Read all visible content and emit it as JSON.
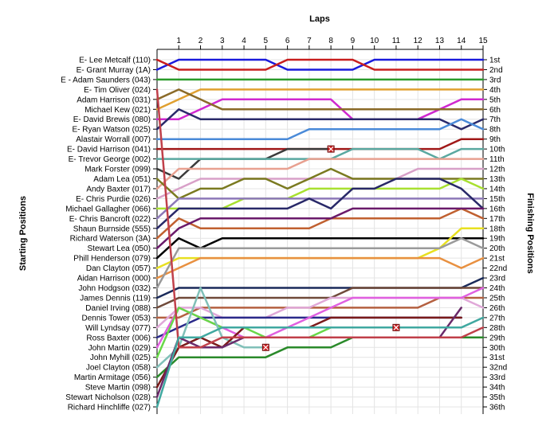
{
  "chart_data": {
    "type": "line",
    "title": "",
    "xlabel": "Laps",
    "ylabel_left": "Starting Positions",
    "ylabel_right": "Finishing Positions",
    "x_ticks": [
      1,
      2,
      3,
      4,
      5,
      6,
      7,
      8,
      9,
      10,
      11,
      12,
      13,
      14,
      15
    ],
    "xlim": [
      0,
      15
    ],
    "ylim": [
      1,
      36
    ],
    "y_inverted": true,
    "grid": true,
    "starting_positions": [
      "E- Lee Metcalf (110)",
      "E- Grant Murray (1A)",
      "E - Adam Saunders (043)",
      "E- Tim Oliver (024)",
      "Adam Harrison (031)",
      "Michael Kew (021)",
      "E- David Brewis (080)",
      "E- Ryan Watson (025)",
      "Alastair Worrall (007)",
      "E- David Harrison (041)",
      "E- Trevor George (002)",
      "Mark Forster (099)",
      "Adam Lea (051)",
      "Andy Baxter (017)",
      "E- Chris Purdie (026)",
      "Michael Gallagher (066)",
      "E- Chris Bancroft (022)",
      "Shaun Burnside (555)",
      "Richard Waterson (3A)",
      "Stewart Lea (050)",
      "Phill Henderson (079)",
      "Dan Clayton (057)",
      "Aidan Harrison (000)",
      "John Hodgson (032)",
      "James Dennis (119)",
      "Daniel Irving (088)",
      "Dennis Tower (053)",
      "Will Lyndsay (077)",
      "Ross Baxter (006)",
      "John Martin (029)",
      "John Myhill (025)",
      "Joel Clayton (058)",
      "Martin Armitage (056)",
      "Steve Martin (098)",
      "Stewart Nicholson (028)",
      "Richard Hinchliffe (027)"
    ],
    "finishing_positions": [
      "1st",
      "2nd",
      "3rd",
      "4th",
      "5th",
      "6th",
      "7th",
      "8th",
      "9th",
      "10th",
      "11th",
      "12th",
      "13th",
      "14th",
      "15th",
      "16th",
      "17th",
      "18th",
      "19th",
      "20th",
      "21st",
      "22nd",
      "23rd",
      "24th",
      "25th",
      "26th",
      "27th",
      "28th",
      "29th",
      "30th",
      "31st",
      "32nd",
      "33rd",
      "34th",
      "35th",
      "36th"
    ],
    "series": [
      {
        "color": "#1a1adc",
        "values": [
          2,
          1,
          1,
          1,
          1,
          1,
          2,
          2,
          2,
          2,
          1,
          1,
          1,
          1,
          1,
          1
        ]
      },
      {
        "color": "#c81e1e",
        "values": [
          1,
          2,
          2,
          2,
          2,
          2,
          1,
          1,
          1,
          1,
          2,
          2,
          2,
          2,
          2,
          2
        ]
      },
      {
        "color": "#2a9a2a",
        "values": [
          3,
          3,
          3,
          3,
          3,
          3,
          3,
          3,
          3,
          3,
          3,
          3,
          3,
          3,
          3,
          3
        ]
      },
      {
        "color": "#e0a030",
        "values": [
          6,
          5,
          4,
          4,
          4,
          4,
          4,
          4,
          4,
          4,
          4,
          4,
          4,
          4,
          4,
          4
        ]
      },
      {
        "color": "#d028d0",
        "values": [
          7,
          7,
          6,
          5,
          5,
          5,
          5,
          5,
          5,
          7,
          7,
          7,
          7,
          6,
          5,
          5
        ]
      },
      {
        "color": "#8a6a28",
        "values": [
          5,
          4,
          5,
          6,
          6,
          6,
          6,
          6,
          6,
          6,
          6,
          6,
          6,
          6,
          6,
          6
        ]
      },
      {
        "color": "#2a2a6a",
        "values": [
          8,
          6,
          7,
          7,
          7,
          7,
          7,
          7,
          7,
          7,
          7,
          7,
          7,
          7,
          8,
          7
        ]
      },
      {
        "color": "#4a8ad8",
        "values": [
          9,
          9,
          9,
          9,
          9,
          9,
          9,
          8,
          8,
          8,
          8,
          8,
          8,
          8,
          7,
          8
        ]
      },
      {
        "color": "#a01818",
        "values": [
          10,
          10,
          10,
          10,
          10,
          10,
          10,
          10,
          10,
          10,
          10,
          10,
          10,
          10,
          9,
          9
        ]
      },
      {
        "color": "#3a3a3a",
        "values": [
          12,
          13,
          11,
          11,
          11,
          11,
          10,
          10,
          10
        ]
      },
      {
        "color": "#5aa8a0",
        "values": [
          11,
          11,
          11,
          11,
          11,
          11,
          11,
          11,
          11,
          10,
          10,
          10,
          10,
          11,
          10,
          10
        ]
      },
      {
        "color": "#e8a090",
        "values": [
          14,
          12,
          12,
          12,
          12,
          12,
          12,
          11,
          11,
          11,
          11,
          11,
          11,
          11,
          11,
          11
        ]
      },
      {
        "color": "#d8a0c8",
        "values": [
          15,
          14,
          13,
          13,
          13,
          13,
          13,
          13,
          13,
          13,
          13,
          13,
          12,
          12,
          12,
          12
        ]
      },
      {
        "color": "#7a7a20",
        "values": [
          13,
          15,
          14,
          14,
          13,
          13,
          14,
          13,
          12,
          13,
          13,
          13,
          13,
          13,
          13,
          13
        ]
      },
      {
        "color": "#a8e030",
        "values": [
          16,
          16,
          16,
          16,
          15,
          15,
          15,
          14,
          14,
          14,
          14,
          14,
          14,
          14,
          13,
          14
        ]
      },
      {
        "color": "#8c78b8",
        "values": [
          17,
          15,
          15,
          15,
          15,
          15,
          15,
          15,
          15,
          15,
          15,
          15,
          15,
          15,
          15,
          15
        ]
      },
      {
        "color": "#282868",
        "values": [
          18,
          16,
          16,
          16,
          16,
          16,
          16,
          15,
          16,
          14,
          14,
          13,
          13,
          13,
          14,
          16
        ]
      },
      {
        "color": "#c06030",
        "values": [
          19,
          17,
          18,
          18,
          18,
          18,
          18,
          18,
          17,
          17,
          17,
          17,
          17,
          17,
          16,
          17
        ]
      },
      {
        "color": "#6a1a6a",
        "values": [
          20,
          18,
          17,
          17,
          17,
          17,
          17,
          17,
          17,
          16,
          16,
          16,
          16,
          16,
          16,
          16
        ]
      },
      {
        "color": "#000000",
        "values": [
          21,
          19,
          20,
          19,
          19,
          19,
          19,
          19,
          19,
          19,
          19,
          19,
          19,
          19,
          19,
          19
        ]
      },
      {
        "color": "#e8e020",
        "values": [
          22,
          21,
          21,
          21,
          21,
          21,
          21,
          21,
          21,
          21,
          21,
          21,
          21,
          20,
          18,
          18
        ]
      },
      {
        "color": "#e89040",
        "values": [
          23,
          22,
          21,
          21,
          21,
          21,
          21,
          21,
          21,
          21,
          21,
          21,
          21,
          21,
          22,
          21
        ]
      },
      {
        "color": "#9a9a9a",
        "values": [
          24,
          20,
          20,
          20,
          20,
          20,
          20,
          20,
          20,
          20,
          20,
          20,
          20,
          20,
          19,
          20
        ]
      },
      {
        "color": "#1a2a5a",
        "values": [
          25,
          24,
          24,
          24,
          24,
          24,
          24,
          24,
          24,
          24,
          24,
          24,
          24,
          24,
          24,
          23
        ]
      },
      {
        "color": "#704a3a",
        "values": [
          26,
          25,
          25,
          25,
          25,
          25,
          25,
          25,
          25,
          24,
          24,
          24,
          24,
          24,
          24,
          24
        ]
      },
      {
        "color": "#b46040",
        "values": [
          27,
          27,
          26,
          26,
          26,
          26,
          26,
          26,
          26,
          26,
          26,
          26,
          26,
          25,
          25,
          25
        ]
      },
      {
        "color": "#e0a8d8",
        "values": [
          28,
          26,
          26,
          27,
          27,
          27,
          26,
          26,
          25,
          25,
          25,
          25,
          25,
          25,
          25,
          26
        ]
      },
      {
        "color": "#2a2a8a",
        "values": [
          29,
          28,
          27,
          27,
          27,
          27,
          27,
          27,
          27,
          27,
          27,
          27,
          27,
          27,
          27
        ]
      },
      {
        "color": "#e060e0",
        "values": [
          30,
          26,
          27,
          28,
          29,
          29,
          28,
          27,
          26,
          25,
          25,
          25,
          25,
          25,
          25,
          24
        ]
      },
      {
        "color": "#68d848",
        "values": [
          31,
          26,
          27,
          28,
          28,
          29,
          29,
          29,
          28,
          28,
          28,
          28
        ]
      },
      {
        "color": "#80c0b8",
        "values": [
          32,
          30,
          24,
          29,
          30,
          30
        ]
      },
      {
        "color": "#2a8a2a",
        "values": [
          33,
          31,
          31,
          31,
          31,
          31,
          30,
          30,
          30,
          29,
          29,
          29,
          29,
          29,
          29,
          29
        ]
      },
      {
        "color": "#7a1a1a",
        "values": [
          34,
          30,
          29,
          30,
          28,
          28,
          28,
          28,
          27,
          27,
          27,
          27,
          27,
          27,
          27
        ]
      },
      {
        "color": "#6a2a6a",
        "values": [
          35,
          29,
          30,
          30,
          29,
          29,
          29,
          29,
          29,
          29,
          29,
          29,
          29,
          29,
          26
        ]
      },
      {
        "color": "#c0404a",
        "values": [
          4,
          30,
          30,
          29,
          29,
          29,
          29,
          29,
          29,
          29,
          29,
          29,
          29,
          29,
          29,
          28
        ]
      },
      {
        "color": "#40a8a0",
        "values": [
          36,
          29,
          29,
          28,
          28,
          28,
          28,
          28,
          28,
          28,
          28,
          28,
          28,
          28,
          28,
          27
        ]
      }
    ]
  }
}
